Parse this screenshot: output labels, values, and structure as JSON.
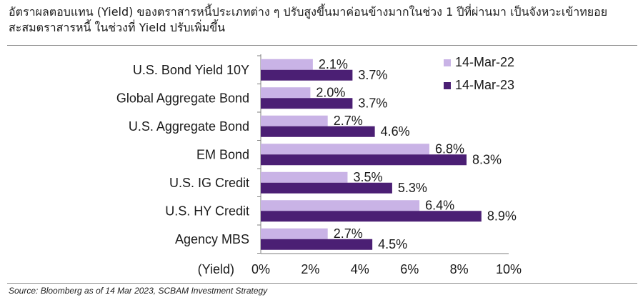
{
  "header": {
    "title": "อัตราผลตอบแทน (Yield) ของตราสารหนี้ประเภทต่าง ๆ ปรับสูงขึ้นมาค่อนข้างมากในช่วง 1 ปีที่ผ่านมา เป็นจังหวะเข้าทยอยสะสมตราสารหนี้ ในช่วงที่ Yield ปรับเพิ่มขึ้น"
  },
  "footer": {
    "source": "Source: Bloomberg as of 14 Mar 2023, SCBAM Investment Strategy"
  },
  "chart_data": {
    "type": "bar",
    "orientation": "horizontal",
    "categories": [
      "U.S. Bond Yield 10Y",
      "Global Aggregate Bond",
      "U.S. Aggregate Bond",
      "EM Bond",
      "U.S. IG Credit",
      "U.S. HY Credit",
      "Agency MBS"
    ],
    "series": [
      {
        "name": "14-Mar-22",
        "color": "#c9b3e6",
        "values": [
          2.1,
          2.0,
          2.7,
          6.8,
          3.5,
          6.4,
          2.7
        ],
        "labels": [
          "2.1%",
          "2.0%",
          "2.7%",
          "6.8%",
          "3.5%",
          "6.4%",
          "2.7%"
        ]
      },
      {
        "name": "14-Mar-23",
        "color": "#4b1f74",
        "values": [
          3.7,
          3.7,
          4.6,
          8.3,
          5.3,
          8.9,
          4.5
        ],
        "labels": [
          "3.7%",
          "3.7%",
          "4.6%",
          "8.3%",
          "5.3%",
          "8.9%",
          "4.5%"
        ]
      }
    ],
    "xlabel": "(Yield)",
    "xlim": [
      0,
      10
    ],
    "xticks": [
      0,
      2,
      4,
      6,
      8,
      10
    ],
    "xtick_labels": [
      "0%",
      "2%",
      "4%",
      "6%",
      "8%",
      "10%"
    ],
    "grid": false,
    "legend_position": "top-right",
    "axis_color": "#7f7f7f"
  }
}
